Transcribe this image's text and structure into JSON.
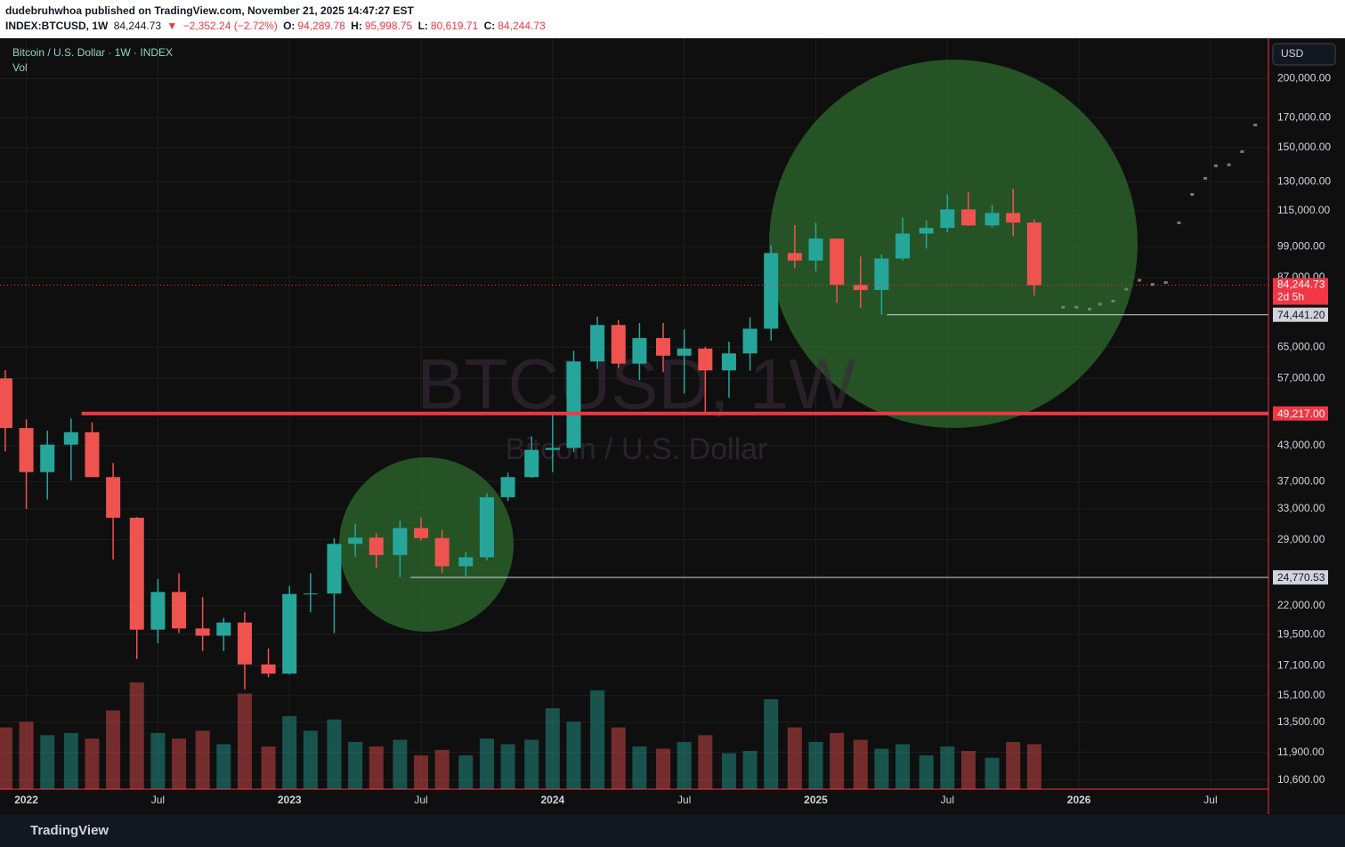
{
  "header": {
    "publisher": "dudebruhwhoa published on TradingView.com, November 21, 2025 14:47:27 EST",
    "symbol": "INDEX:BTCUSD, 1W",
    "last": "84,244.73",
    "arrow": "▼",
    "change": "−2,352.24 (−2.72%)",
    "o_label": "O:",
    "o": "94,289.78",
    "h_label": "H:",
    "h": "95,998.75",
    "l_label": "L:",
    "l": "80,619.71",
    "c_label": "C:",
    "c": "84,244.73"
  },
  "footer": {
    "brand": "TradingView"
  },
  "chart_data": {
    "type": "candlestick",
    "legend": "Bitcoin / U.S. Dollar · 1W · INDEX",
    "volume_label": "Vol",
    "watermark": "BTCUSD, 1W",
    "watermark_sub": "Bitcoin / U.S. Dollar",
    "currency": "USD",
    "log_scale": true,
    "grid": true,
    "up_color": "#26a69a",
    "down_color": "#ef5350",
    "xlim": [
      2021.9,
      2026.72
    ],
    "ylim": [
      10200,
      237000
    ],
    "xticks": [
      {
        "value": 2022,
        "label": "2022"
      },
      {
        "value": 2022.5,
        "label": "Jul"
      },
      {
        "value": 2023,
        "label": "2023"
      },
      {
        "value": 2023.5,
        "label": "Jul"
      },
      {
        "value": 2024,
        "label": "2024"
      },
      {
        "value": 2024.5,
        "label": "Jul"
      },
      {
        "value": 2025,
        "label": "2025"
      },
      {
        "value": 2025.5,
        "label": "Jul"
      },
      {
        "value": 2026,
        "label": "2026"
      },
      {
        "value": 2026.5,
        "label": "Jul"
      }
    ],
    "yticks": [
      {
        "value": 200000,
        "label": "200,000.00"
      },
      {
        "value": 170000,
        "label": "170,000.00"
      },
      {
        "value": 150000,
        "label": "150,000.00"
      },
      {
        "value": 130000,
        "label": "130,000.00"
      },
      {
        "value": 115000,
        "label": "115,000.00"
      },
      {
        "value": 99000,
        "label": "99,000.00"
      },
      {
        "value": 87000,
        "label": "87,000.00"
      },
      {
        "value": 65000,
        "label": "65,000.00"
      },
      {
        "value": 57000,
        "label": "57,000.00"
      },
      {
        "value": 43000,
        "label": "43,000.00"
      },
      {
        "value": 37000,
        "label": "37,000.00"
      },
      {
        "value": 33000,
        "label": "33,000.00"
      },
      {
        "value": 29000,
        "label": "29,000.00"
      },
      {
        "value": 22000,
        "label": "22,000.00"
      },
      {
        "value": 19500,
        "label": "19,500.00"
      },
      {
        "value": 17100,
        "label": "17,100.00"
      },
      {
        "value": 15100,
        "label": "15,100.00"
      },
      {
        "value": 13500,
        "label": "13,500.00"
      },
      {
        "value": 11900,
        "label": "11,900.00"
      },
      {
        "value": 10600,
        "label": "10,600.00"
      }
    ],
    "x": [
      2021.92,
      2022.0,
      2022.08,
      2022.17,
      2022.25,
      2022.33,
      2022.42,
      2022.5,
      2022.58,
      2022.67,
      2022.75,
      2022.83,
      2022.92,
      2023.0,
      2023.08,
      2023.17,
      2023.25,
      2023.33,
      2023.42,
      2023.5,
      2023.58,
      2023.67,
      2023.75,
      2023.83,
      2023.92,
      2024.0,
      2024.08,
      2024.17,
      2024.25,
      2024.33,
      2024.42,
      2024.5,
      2024.58,
      2024.67,
      2024.75,
      2024.83,
      2024.92,
      2025.0,
      2025.08,
      2025.17,
      2025.25,
      2025.33,
      2025.42,
      2025.5,
      2025.58,
      2025.67,
      2025.75,
      2025.83
    ],
    "open": [
      57000,
      46300,
      38500,
      43200,
      45500,
      37700,
      31800,
      19900,
      23300,
      20000,
      19400,
      20500,
      17200,
      16550,
      23100,
      23150,
      28500,
      29250,
      27200,
      30450,
      29200,
      25950,
      26950,
      34650,
      37700,
      42250,
      42600,
      61200,
      71300,
      60650,
      67500,
      62700,
      64600,
      58950,
      63300,
      70200,
      96400,
      93400,
      102400,
      84350,
      82550,
      94200,
      104600,
      107100,
      115700,
      108200,
      114000,
      109500
    ],
    "high": [
      59000,
      48000,
      45800,
      48200,
      47400,
      40000,
      31900,
      24600,
      25200,
      22800,
      20900,
      21400,
      18400,
      23900,
      25200,
      29200,
      31000,
      29800,
      31400,
      31800,
      30200,
      27500,
      35200,
      38400,
      44700,
      48900,
      64000,
      73800,
      72800,
      71900,
      71900,
      70000,
      65100,
      66500,
      73600,
      99600,
      108300,
      109400,
      102500,
      95000,
      95800,
      111900,
      110500,
      123200,
      124500,
      117900,
      126200,
      111000
    ],
    "low": [
      42000,
      33000,
      34300,
      37200,
      37700,
      26700,
      17600,
      18800,
      19600,
      18200,
      18200,
      15500,
      16300,
      16500,
      21400,
      19600,
      27000,
      25800,
      24800,
      28900,
      25200,
      24900,
      26600,
      34100,
      37600,
      38500,
      41900,
      59300,
      59600,
      56600,
      58500,
      53500,
      49200,
      52600,
      58900,
      66800,
      90500,
      89200,
      78200,
      76600,
      74441,
      93400,
      98200,
      105100,
      108000,
      107300,
      103500,
      80620
    ],
    "close": [
      46300,
      38500,
      43200,
      45500,
      37700,
      31800,
      19900,
      23300,
      20000,
      19400,
      20500,
      17200,
      16550,
      23100,
      23150,
      28500,
      29250,
      27200,
      30450,
      29200,
      25950,
      26950,
      34650,
      37700,
      42250,
      42600,
      61200,
      71300,
      60650,
      67500,
      62700,
      64600,
      58950,
      63300,
      70200,
      96400,
      93400,
      102400,
      84350,
      82550,
      94200,
      104600,
      107100,
      115700,
      108200,
      114000,
      109500,
      84245
    ],
    "volume": [
      55,
      60,
      48,
      50,
      45,
      70,
      95,
      50,
      45,
      52,
      40,
      85,
      38,
      65,
      52,
      62,
      42,
      38,
      44,
      30,
      35,
      30,
      45,
      40,
      44,
      72,
      60,
      88,
      55,
      38,
      36,
      42,
      48,
      32,
      34,
      80,
      55,
      42,
      50,
      44,
      36,
      40,
      30,
      38,
      34,
      28,
      42,
      40
    ],
    "projection": {
      "color": "#7a7a7a",
      "x": [
        2025.94,
        2025.99,
        2026.04,
        2026.08,
        2026.13,
        2026.18,
        2026.23,
        2026.28,
        2026.33,
        2026.38,
        2026.43,
        2026.48,
        2026.52,
        2026.57,
        2026.62,
        2026.67
      ],
      "values": [
        76800,
        76800,
        76200,
        77800,
        78800,
        82800,
        86000,
        84500,
        85200,
        109400,
        123200,
        131800,
        138900,
        139500,
        147400,
        164800
      ]
    },
    "current": {
      "value": 84244.73,
      "label": "84,244.73",
      "countdown": "2d 5h",
      "color": "#f23645"
    },
    "levels": [
      {
        "value": 49217,
        "label": "49,217.00",
        "x": 2022.21,
        "color": "#f23645"
      },
      {
        "value": 74441.2,
        "label": "74,441.20",
        "x": 2025.27,
        "color": "#d1d4dc"
      },
      {
        "value": 24770.53,
        "label": "24,770.53",
        "x": 2023.46,
        "color": "#d1d4dc"
      }
    ]
  }
}
